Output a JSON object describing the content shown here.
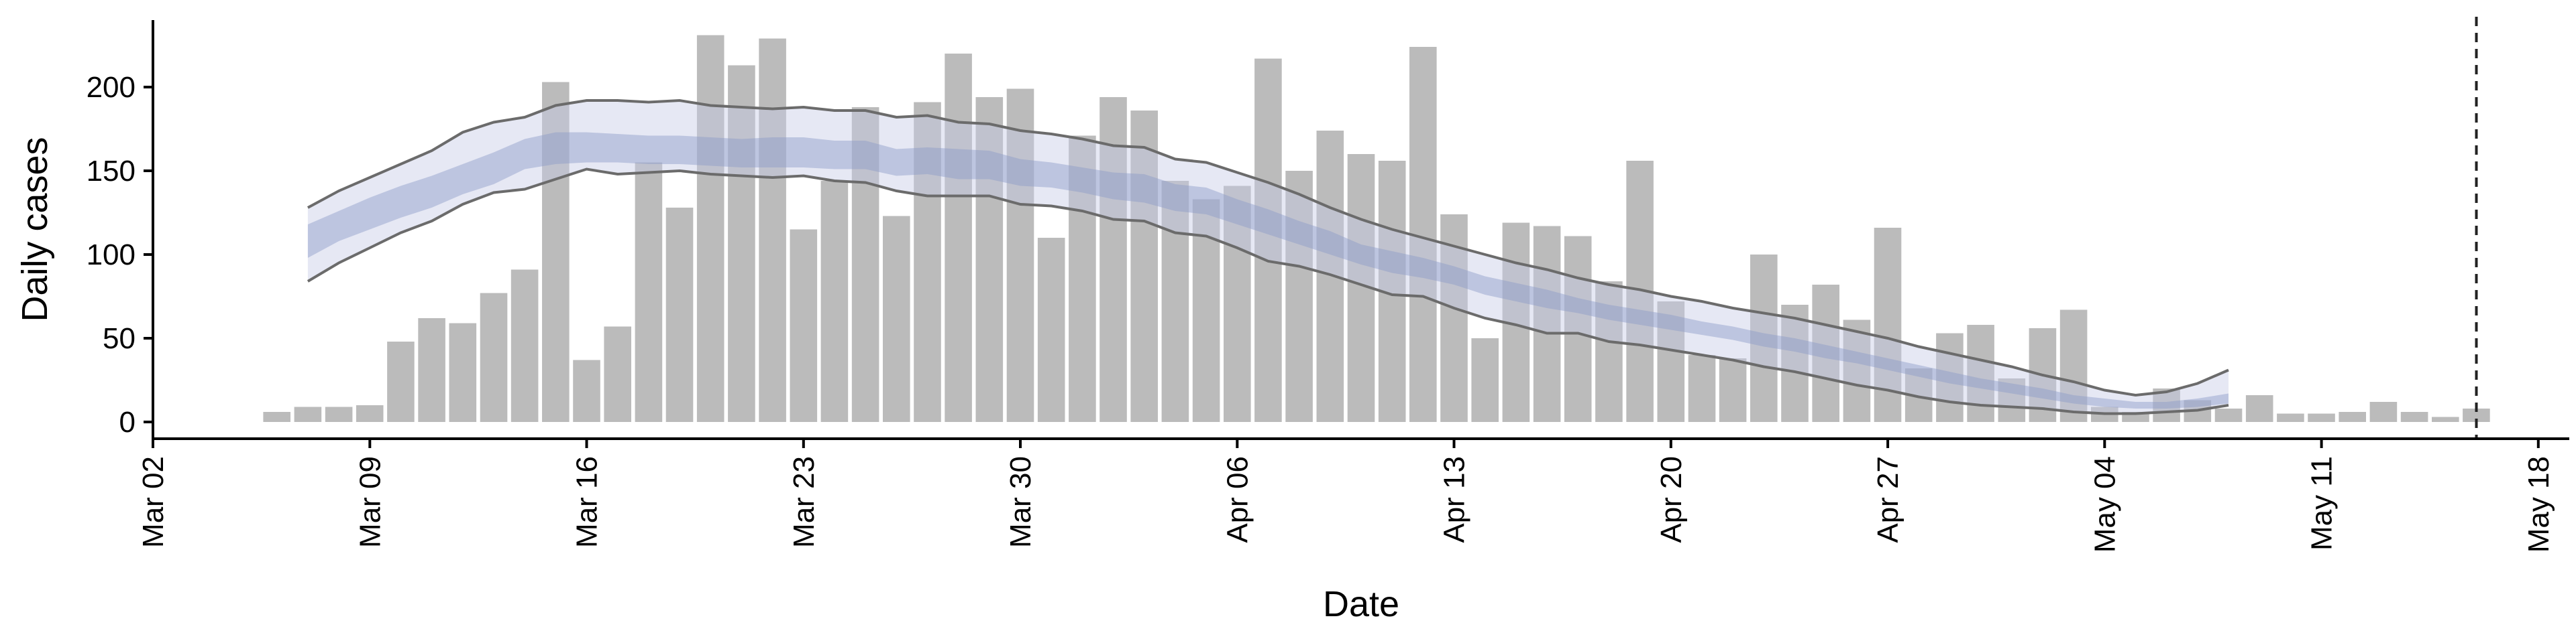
{
  "chart_data": {
    "type": "bar",
    "xlabel": "Date",
    "ylabel": "Daily cases",
    "xlim": [
      "2020-03-02",
      "2020-05-19"
    ],
    "ylim": [
      -10,
      240
    ],
    "x_ticks": [
      {
        "date": "2020-03-02",
        "label": "Mar 02"
      },
      {
        "date": "2020-03-09",
        "label": "Mar 09"
      },
      {
        "date": "2020-03-16",
        "label": "Mar 16"
      },
      {
        "date": "2020-03-23",
        "label": "Mar 23"
      },
      {
        "date": "2020-03-30",
        "label": "Mar 30"
      },
      {
        "date": "2020-04-06",
        "label": "Apr 06"
      },
      {
        "date": "2020-04-13",
        "label": "Apr 13"
      },
      {
        "date": "2020-04-20",
        "label": "Apr 20"
      },
      {
        "date": "2020-04-27",
        "label": "Apr 27"
      },
      {
        "date": "2020-05-04",
        "label": "May 04"
      },
      {
        "date": "2020-05-11",
        "label": "May 11"
      },
      {
        "date": "2020-05-18",
        "label": "May 18"
      }
    ],
    "y_ticks": [
      0,
      50,
      100,
      150,
      200
    ],
    "grid": false,
    "bars": {
      "color": "#bbbbbb",
      "x": [
        "2020-03-06",
        "2020-03-07",
        "2020-03-08",
        "2020-03-09",
        "2020-03-10",
        "2020-03-11",
        "2020-03-12",
        "2020-03-13",
        "2020-03-14",
        "2020-03-15",
        "2020-03-16",
        "2020-03-17",
        "2020-03-18",
        "2020-03-19",
        "2020-03-20",
        "2020-03-21",
        "2020-03-22",
        "2020-03-23",
        "2020-03-24",
        "2020-03-25",
        "2020-03-26",
        "2020-03-27",
        "2020-03-28",
        "2020-03-29",
        "2020-03-30",
        "2020-03-31",
        "2020-04-01",
        "2020-04-02",
        "2020-04-03",
        "2020-04-04",
        "2020-04-05",
        "2020-04-06",
        "2020-04-07",
        "2020-04-08",
        "2020-04-09",
        "2020-04-10",
        "2020-04-11",
        "2020-04-12",
        "2020-04-13",
        "2020-04-14",
        "2020-04-15",
        "2020-04-16",
        "2020-04-17",
        "2020-04-18",
        "2020-04-19",
        "2020-04-20",
        "2020-04-21",
        "2020-04-22",
        "2020-04-23",
        "2020-04-24",
        "2020-04-25",
        "2020-04-26",
        "2020-04-27",
        "2020-04-28",
        "2020-04-29",
        "2020-04-30",
        "2020-05-01",
        "2020-05-02",
        "2020-05-03",
        "2020-05-04",
        "2020-05-05",
        "2020-05-06",
        "2020-05-07",
        "2020-05-08",
        "2020-05-09",
        "2020-05-10",
        "2020-05-11",
        "2020-05-12",
        "2020-05-13",
        "2020-05-14",
        "2020-05-15",
        "2020-05-16"
      ],
      "values": [
        6,
        9,
        9,
        10,
        48,
        62,
        59,
        77,
        91,
        203,
        37,
        57,
        155,
        128,
        231,
        213,
        229,
        115,
        144,
        188,
        123,
        191,
        220,
        194,
        199,
        110,
        171,
        194,
        186,
        144,
        133,
        141,
        217,
        150,
        174,
        160,
        156,
        224,
        124,
        50,
        119,
        117,
        111,
        84,
        156,
        72,
        40,
        38,
        100,
        70,
        82,
        61,
        116,
        32,
        53,
        58,
        26,
        56,
        67,
        9,
        6,
        20,
        13,
        8,
        16,
        5,
        5,
        6,
        12,
        6,
        3,
        8
      ]
    },
    "band": {
      "x": [
        "2020-03-07",
        "2020-03-08",
        "2020-03-09",
        "2020-03-10",
        "2020-03-11",
        "2020-03-12",
        "2020-03-13",
        "2020-03-14",
        "2020-03-15",
        "2020-03-16",
        "2020-03-17",
        "2020-03-18",
        "2020-03-19",
        "2020-03-20",
        "2020-03-21",
        "2020-03-22",
        "2020-03-23",
        "2020-03-24",
        "2020-03-25",
        "2020-03-26",
        "2020-03-27",
        "2020-03-28",
        "2020-03-29",
        "2020-03-30",
        "2020-03-31",
        "2020-04-01",
        "2020-04-02",
        "2020-04-03",
        "2020-04-04",
        "2020-04-05",
        "2020-04-06",
        "2020-04-07",
        "2020-04-08",
        "2020-04-09",
        "2020-04-10",
        "2020-04-11",
        "2020-04-12",
        "2020-04-13",
        "2020-04-14",
        "2020-04-15",
        "2020-04-16",
        "2020-04-17",
        "2020-04-18",
        "2020-04-19",
        "2020-04-20",
        "2020-04-21",
        "2020-04-22",
        "2020-04-23",
        "2020-04-24",
        "2020-04-25",
        "2020-04-26",
        "2020-04-27",
        "2020-04-28",
        "2020-04-29",
        "2020-04-30",
        "2020-05-01",
        "2020-05-02",
        "2020-05-03",
        "2020-05-04",
        "2020-05-05",
        "2020-05-06",
        "2020-05-07",
        "2020-05-08"
      ],
      "outer_upper": [
        128,
        138,
        146,
        154,
        162,
        173,
        179,
        182,
        189,
        192,
        192,
        191,
        192,
        189,
        188,
        187,
        188,
        186,
        186,
        182,
        183,
        179,
        178,
        174,
        172,
        169,
        165,
        164,
        157,
        155,
        149,
        143,
        136,
        128,
        121,
        115,
        110,
        105,
        100,
        95,
        91,
        86,
        82,
        79,
        75,
        72,
        68,
        65,
        62,
        58,
        54,
        50,
        45,
        41,
        37,
        33,
        28,
        24,
        19,
        16,
        18,
        23,
        31
      ],
      "outer_lower": [
        84,
        95,
        104,
        113,
        120,
        130,
        137,
        139,
        145,
        151,
        148,
        149,
        150,
        148,
        147,
        146,
        147,
        144,
        143,
        138,
        135,
        135,
        135,
        130,
        129,
        126,
        121,
        120,
        113,
        111,
        104,
        96,
        93,
        88,
        82,
        76,
        75,
        68,
        62,
        58,
        53,
        53,
        48,
        46,
        43,
        40,
        37,
        33,
        30,
        26,
        22,
        19,
        15,
        12,
        10,
        9,
        8,
        6,
        5,
        5,
        6,
        7,
        10
      ],
      "inner_upper": [
        118,
        126,
        134,
        141,
        147,
        154,
        161,
        169,
        173,
        173,
        172,
        171,
        171,
        170,
        169,
        170,
        170,
        168,
        168,
        163,
        164,
        163,
        162,
        157,
        155,
        152,
        149,
        148,
        142,
        140,
        133,
        127,
        120,
        114,
        106,
        102,
        98,
        93,
        87,
        83,
        79,
        74,
        70,
        67,
        64,
        60,
        57,
        53,
        50,
        46,
        42,
        38,
        34,
        30,
        26,
        23,
        20,
        16,
        14,
        12,
        12,
        14,
        17
      ],
      "inner_lower": [
        98,
        108,
        115,
        122,
        128,
        136,
        142,
        151,
        154,
        155,
        155,
        154,
        154,
        153,
        152,
        152,
        152,
        151,
        151,
        147,
        148,
        145,
        145,
        141,
        140,
        137,
        133,
        131,
        126,
        124,
        118,
        112,
        106,
        100,
        94,
        89,
        86,
        82,
        76,
        72,
        68,
        65,
        61,
        58,
        55,
        52,
        49,
        45,
        42,
        38,
        35,
        31,
        27,
        23,
        20,
        17,
        14,
        11,
        9,
        8,
        8,
        9,
        11
      ]
    },
    "vline": {
      "x": "2020-05-16",
      "style": "dashed"
    }
  }
}
